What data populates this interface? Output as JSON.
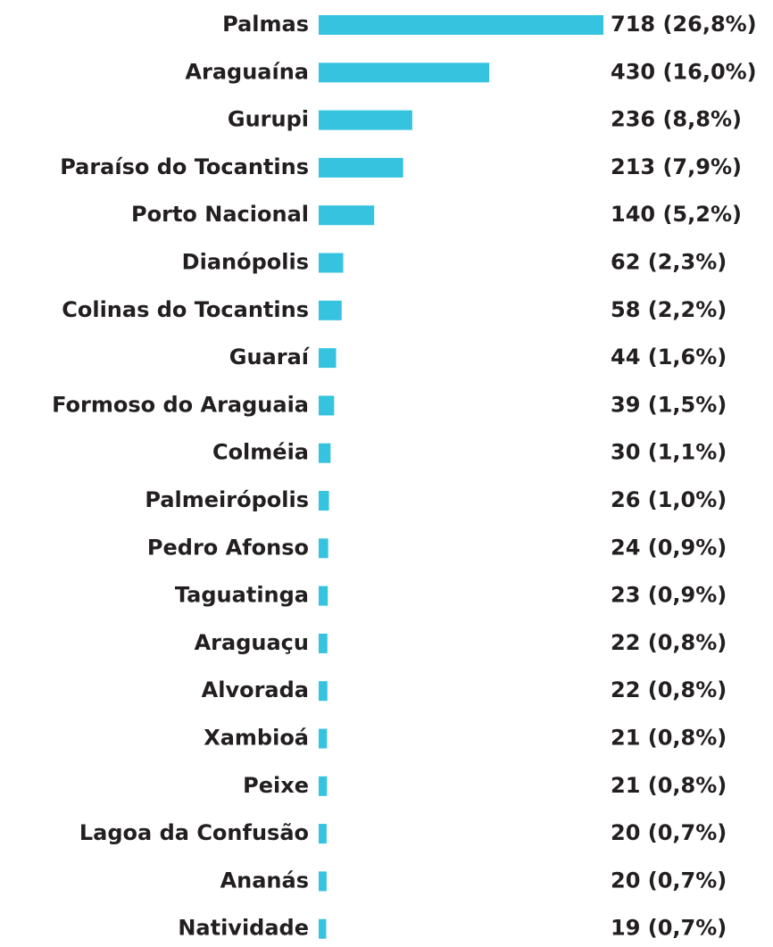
{
  "chart_data": {
    "type": "barh",
    "color": "#35c3e0",
    "categories": [
      "Palmas",
      "Araguaína",
      "Gurupi",
      "Paraíso do Tocantins",
      "Porto Nacional",
      "Dianópolis",
      "Colinas do Tocantins",
      "Guaraí",
      "Formoso do Araguaia",
      "Colméia",
      "Palmeirópolis",
      "Pedro Afonso",
      "Taguatinga",
      "Araguaçu",
      "Alvorada",
      "Xambioá",
      "Peixe",
      "Lagoa da Confusão",
      "Ananás",
      "Natividade"
    ],
    "values": [
      718,
      430,
      236,
      213,
      140,
      62,
      58,
      44,
      39,
      30,
      26,
      24,
      23,
      22,
      22,
      21,
      21,
      20,
      20,
      19
    ],
    "value_labels": [
      "718 (26,8%)",
      "430 (16,0%)",
      "236 (8,8%)",
      "213 (7,9%)",
      "140 (5,2%)",
      "62 (2,3%)",
      "58 (2,2%)",
      "44 (1,6%)",
      "39 (1,5%)",
      "30 (1,1%)",
      "26 (1,0%)",
      "24 (0,9%)",
      "23 (0,9%)",
      "22 (0,8%)",
      "22 (0,8%)",
      "21 (0,8%)",
      "21 (0,8%)",
      "20 (0,7%)",
      "20 (0,7%)",
      "19 (0,7%)"
    ]
  }
}
